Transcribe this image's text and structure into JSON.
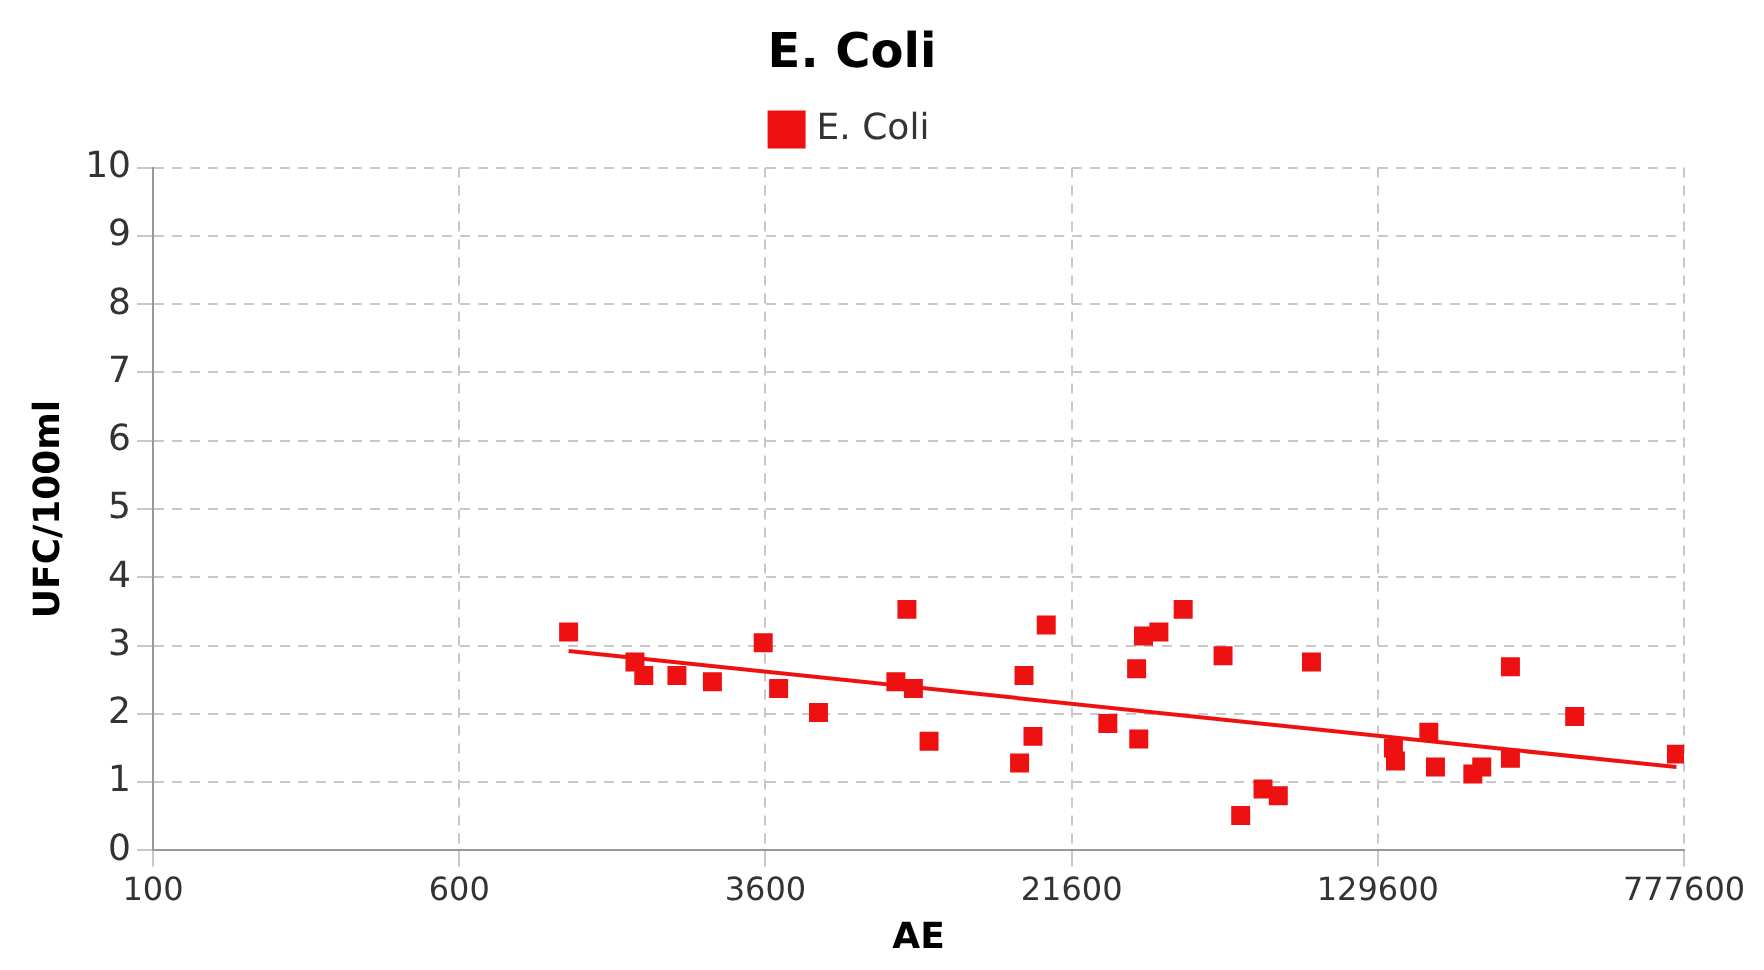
{
  "chart_data": {
    "type": "scatter",
    "title": "E. Coli",
    "xlabel": "AE",
    "ylabel": "UFC/100ml",
    "log": "x",
    "xlim": [
      100,
      777600
    ],
    "xticks": [
      100,
      600,
      3600,
      21600,
      129600,
      777600
    ],
    "ylim": [
      0,
      10
    ],
    "yticks": [
      0,
      1,
      2,
      3,
      4,
      5,
      6,
      7,
      8,
      9,
      10
    ],
    "grid": true,
    "legend": "top",
    "marker": "square",
    "series": [
      {
        "name": "E. Coli",
        "color": "#ee1111",
        "x": [
          1138,
          1678,
          1767,
          2145,
          2640,
          3554,
          3890,
          4911,
          7725,
          8240,
          8560,
          9380,
          15930,
          16350,
          17230,
          18620,
          26700,
          31600,
          32000,
          32900,
          36000,
          41500,
          52400,
          58100,
          66200,
          72400,
          87900,
          142000,
          143700,
          174700,
          181600,
          226000,
          238100,
          281600,
          281600,
          410200,
          744000
        ],
        "values": [
          3.2,
          2.76,
          2.56,
          2.56,
          2.47,
          3.04,
          2.37,
          2.02,
          2.47,
          3.53,
          2.37,
          1.6,
          1.28,
          2.56,
          1.67,
          3.3,
          1.86,
          2.66,
          1.63,
          3.14,
          3.2,
          3.53,
          2.85,
          0.51,
          0.9,
          0.8,
          2.76,
          1.5,
          1.31,
          1.73,
          1.22,
          1.12,
          1.22,
          1.35,
          2.69,
          1.96,
          1.41
        ]
      },
      {
        "type": "line",
        "color": "#ee1111",
        "marker": "none",
        "x": [
          1138,
          744000
        ],
        "values": [
          2.92,
          1.22
        ]
      }
    ]
  }
}
